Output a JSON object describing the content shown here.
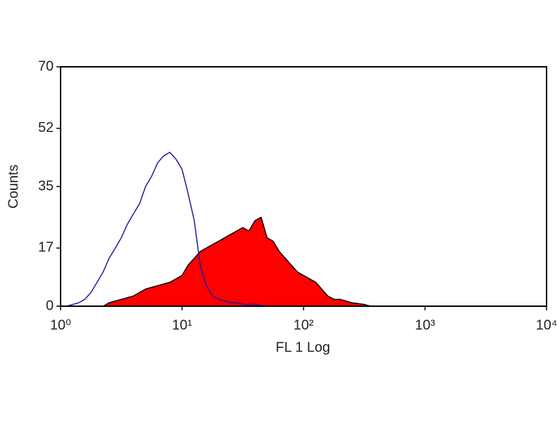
{
  "chart_data": {
    "type": "histogram-overlay",
    "xlabel": "FL 1 Log",
    "ylabel": "Counts",
    "xscale": "log",
    "xlim": [
      1,
      10000
    ],
    "xticks": [
      {
        "value": 1,
        "label": "10⁰"
      },
      {
        "value": 10,
        "label": "10¹"
      },
      {
        "value": 100,
        "label": "10²"
      },
      {
        "value": 1000,
        "label": "10³"
      },
      {
        "value": 10000,
        "label": "10⁴"
      }
    ],
    "ylim": [
      0,
      70
    ],
    "yticks": [
      0,
      17,
      35,
      52,
      70
    ],
    "series": [
      {
        "color": "#1c1c9e",
        "filled": false,
        "x": [
          1.12,
          1.26,
          1.41,
          1.58,
          1.78,
          2.0,
          2.24,
          2.51,
          2.82,
          3.16,
          3.55,
          3.98,
          4.47,
          5.01,
          5.62,
          6.31,
          7.08,
          7.94,
          8.91,
          10,
          11.2,
          12.6,
          14.1,
          15.8,
          17.8,
          20,
          22.4,
          25.1,
          28.2,
          31.6,
          39.8,
          50.1
        ],
        "values": [
          0,
          0.5,
          1,
          2,
          4,
          7,
          10,
          14,
          17,
          20,
          24,
          27,
          30,
          35,
          38,
          42,
          44,
          45,
          43,
          40,
          33,
          25,
          12,
          6,
          3,
          2,
          1.5,
          1,
          1,
          0.5,
          0.5,
          0
        ]
      },
      {
        "color": "#ff0000",
        "filled": true,
        "edge_color": "#000000",
        "x": [
          2.24,
          2.51,
          3.16,
          3.98,
          5.01,
          6.31,
          7.94,
          10,
          11.2,
          12.6,
          14.1,
          15.8,
          17.8,
          20,
          22.4,
          25.1,
          28.2,
          31.6,
          35.5,
          39.8,
          44.7,
          50.1,
          56.2,
          63.1,
          70.8,
          79.4,
          89.1,
          100,
          112,
          126,
          141,
          158,
          178,
          200,
          251,
          316,
          355
        ],
        "values": [
          0,
          1,
          2,
          3,
          5,
          6,
          7,
          9,
          12,
          14,
          16,
          17,
          18,
          19,
          20,
          21,
          22,
          23,
          22,
          25,
          26,
          20,
          19,
          16,
          14,
          12,
          10,
          9,
          8,
          7,
          5,
          3,
          2,
          2,
          1,
          0.5,
          0
        ]
      }
    ]
  }
}
